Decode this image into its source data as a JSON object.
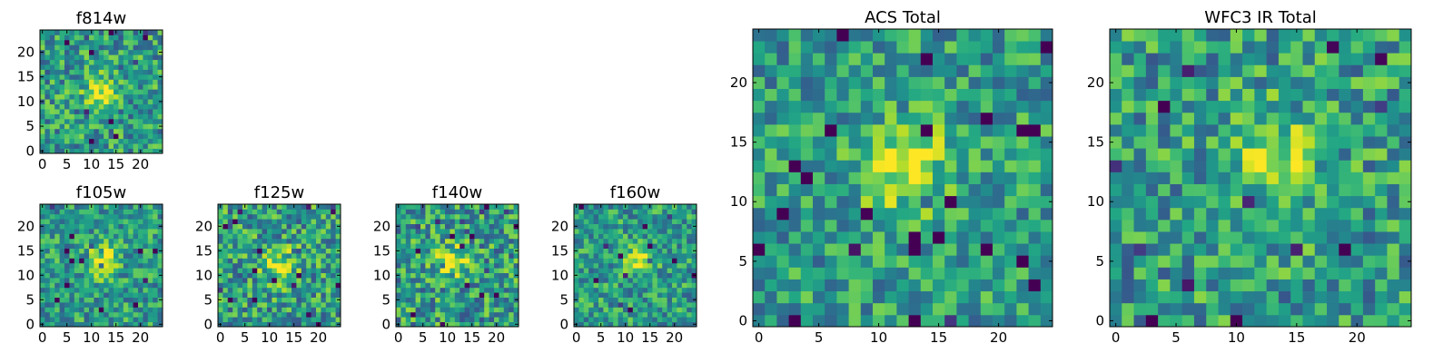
{
  "chart_data": [
    {
      "type": "heatmap",
      "title": "f814w",
      "xticks": [
        "0",
        "5",
        "10",
        "15",
        "20"
      ],
      "yticks": [
        "0",
        "5",
        "10",
        "15",
        "20"
      ],
      "grid": [
        25,
        25
      ],
      "blob": {
        "center": [
          12,
          12
        ],
        "strength": 0.45,
        "radius": 3.0
      },
      "noise": 0.28,
      "seed": 11
    },
    {
      "type": "heatmap",
      "title": "f105w",
      "xticks": [
        "0",
        "5",
        "10",
        "15",
        "20"
      ],
      "yticks": [
        "0",
        "5",
        "10",
        "15",
        "20"
      ],
      "grid": [
        25,
        25
      ],
      "blob": {
        "center": [
          12,
          13
        ],
        "strength": 0.5,
        "radius": 3.0
      },
      "noise": 0.25,
      "seed": 23
    },
    {
      "type": "heatmap",
      "title": "f125w",
      "xticks": [
        "0",
        "5",
        "10",
        "15",
        "20"
      ],
      "yticks": [
        "0",
        "5",
        "10",
        "15",
        "20"
      ],
      "grid": [
        25,
        25
      ],
      "blob": {
        "center": [
          12,
          12
        ],
        "strength": 0.35,
        "radius": 3.5
      },
      "noise": 0.3,
      "seed": 37
    },
    {
      "type": "heatmap",
      "title": "f140w",
      "xticks": [
        "0",
        "5",
        "10",
        "15",
        "20"
      ],
      "yticks": [
        "0",
        "5",
        "10",
        "15",
        "20"
      ],
      "grid": [
        25,
        25
      ],
      "blob": {
        "center": [
          11,
          13
        ],
        "strength": 0.4,
        "radius": 3.0
      },
      "noise": 0.3,
      "seed": 41
    },
    {
      "type": "heatmap",
      "title": "f160w",
      "xticks": [
        "0",
        "5",
        "10",
        "15",
        "20"
      ],
      "yticks": [
        "0",
        "5",
        "10",
        "15",
        "20"
      ],
      "grid": [
        25,
        25
      ],
      "blob": {
        "center": [
          13,
          13
        ],
        "strength": 0.5,
        "radius": 2.5
      },
      "noise": 0.25,
      "seed": 53
    },
    {
      "type": "heatmap",
      "title": "ACS Total",
      "xticks": [
        "0",
        "5",
        "10",
        "15",
        "20"
      ],
      "yticks": [
        "0",
        "5",
        "10",
        "15",
        "20"
      ],
      "grid": [
        25,
        25
      ],
      "blob": {
        "center": [
          12,
          13
        ],
        "strength": 0.45,
        "radius": 3.5
      },
      "noise": 0.25,
      "seed": 67
    },
    {
      "type": "heatmap",
      "title": "WFC3 IR Total",
      "xticks": [
        "0",
        "5",
        "10",
        "15",
        "20"
      ],
      "yticks": [
        "0",
        "5",
        "10",
        "15",
        "20"
      ],
      "grid": [
        25,
        25
      ],
      "blob": {
        "center": [
          13,
          14
        ],
        "strength": 0.35,
        "radius": 3.5
      },
      "noise": 0.28,
      "seed": 79
    }
  ],
  "colormap": "viridis"
}
